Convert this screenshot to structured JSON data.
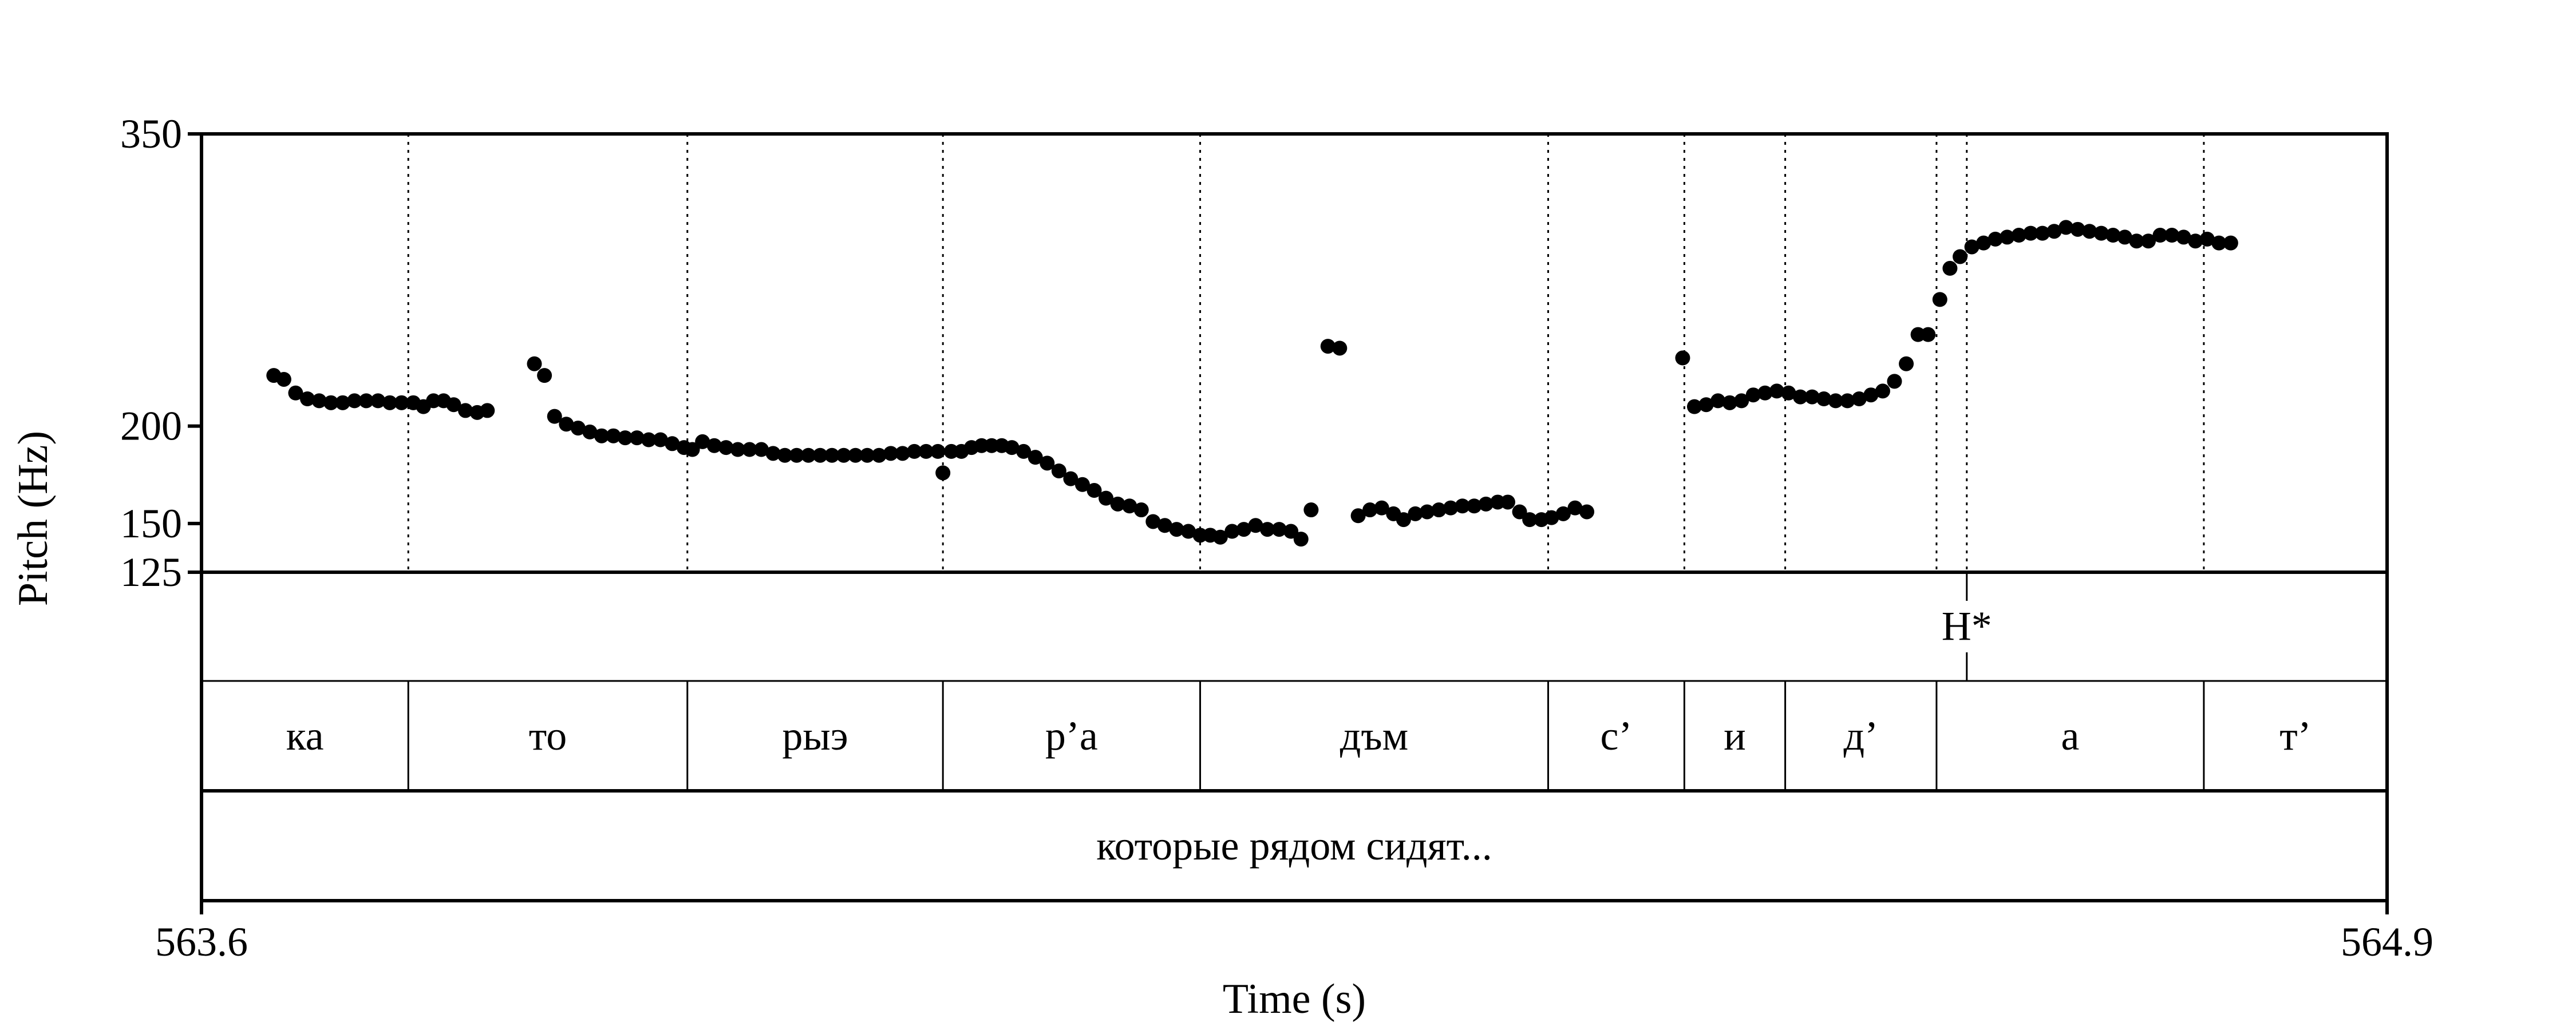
{
  "chart_data": {
    "type": "scatter",
    "title": "",
    "xlabel": "Time (s)",
    "ylabel": "Pitch (Hz)",
    "xlim": [
      563.6,
      564.9
    ],
    "ylim": [
      125,
      350
    ],
    "x_tick_labels": [
      "563.6",
      "564.9"
    ],
    "y_ticks": [
      {
        "value": 350,
        "label": "350"
      },
      {
        "value": 200,
        "label": "200"
      },
      {
        "value": 150,
        "label": "150"
      },
      {
        "value": 125,
        "label": "125"
      }
    ],
    "grid": false,
    "tone_tier": [
      {
        "time": 564.65,
        "label": "H*"
      }
    ],
    "syllable_tier": {
      "boundaries": [
        563.6,
        563.723,
        563.889,
        564.041,
        564.194,
        564.401,
        564.482,
        564.542,
        564.632,
        564.791,
        564.9
      ],
      "labels": [
        "ка",
        "то",
        "рыэ",
        "р’а",
        "дъм",
        "с’",
        "и",
        "д’",
        "а",
        "т’"
      ]
    },
    "word_tier": {
      "boundaries": [
        563.6,
        564.9
      ],
      "labels": [
        "которые рядом сидят..."
      ]
    },
    "series": [
      {
        "points": [
          [
            563.643,
            226
          ],
          [
            563.649,
            224
          ],
          [
            563.656,
            217
          ],
          [
            563.663,
            214
          ],
          [
            563.67,
            213
          ],
          [
            563.677,
            212
          ],
          [
            563.684,
            212
          ],
          [
            563.691,
            213
          ],
          [
            563.698,
            213
          ],
          [
            563.705,
            213
          ],
          [
            563.712,
            212
          ],
          [
            563.719,
            212
          ],
          [
            563.726,
            212
          ],
          [
            563.732,
            210
          ],
          [
            563.738,
            213
          ],
          [
            563.744,
            213
          ],
          [
            563.75,
            211
          ],
          [
            563.757,
            208
          ],
          [
            563.764,
            207
          ],
          [
            563.77,
            208
          ],
          [
            563.798,
            232
          ],
          [
            563.804,
            226
          ],
          [
            563.81,
            205
          ],
          [
            563.817,
            201
          ],
          [
            563.824,
            199
          ],
          [
            563.831,
            197
          ],
          [
            563.838,
            195
          ],
          [
            563.845,
            195
          ],
          [
            563.852,
            194
          ],
          [
            563.859,
            194
          ],
          [
            563.866,
            193
          ],
          [
            563.873,
            193
          ],
          [
            563.88,
            191
          ],
          [
            563.887,
            189
          ],
          [
            563.892,
            188
          ],
          [
            563.898,
            192
          ],
          [
            563.905,
            190
          ],
          [
            563.912,
            189
          ],
          [
            563.919,
            188
          ],
          [
            563.926,
            188
          ],
          [
            563.933,
            188
          ],
          [
            563.94,
            186
          ],
          [
            563.947,
            185
          ],
          [
            563.954,
            185
          ],
          [
            563.961,
            185
          ],
          [
            563.968,
            185
          ],
          [
            563.975,
            185
          ],
          [
            563.982,
            185
          ],
          [
            563.989,
            185
          ],
          [
            563.996,
            185
          ],
          [
            564.003,
            185
          ],
          [
            564.01,
            186
          ],
          [
            564.017,
            186
          ],
          [
            564.024,
            187
          ],
          [
            564.031,
            187
          ],
          [
            564.038,
            187
          ],
          [
            564.041,
            176
          ],
          [
            564.046,
            187
          ],
          [
            564.052,
            187
          ],
          [
            564.058,
            189
          ],
          [
            564.064,
            190
          ],
          [
            564.07,
            190
          ],
          [
            564.076,
            190
          ],
          [
            564.082,
            189
          ],
          [
            564.089,
            187
          ],
          [
            564.096,
            184
          ],
          [
            564.103,
            181
          ],
          [
            564.11,
            177
          ],
          [
            564.117,
            173
          ],
          [
            564.124,
            170
          ],
          [
            564.131,
            167
          ],
          [
            564.138,
            163
          ],
          [
            564.145,
            160
          ],
          [
            564.152,
            159
          ],
          [
            564.159,
            157
          ],
          [
            564.166,
            151
          ],
          [
            564.173,
            149
          ],
          [
            564.18,
            147
          ],
          [
            564.187,
            146
          ],
          [
            564.194,
            144
          ],
          [
            564.2,
            144
          ],
          [
            564.206,
            143
          ],
          [
            564.213,
            146
          ],
          [
            564.22,
            147
          ],
          [
            564.227,
            149
          ],
          [
            564.234,
            147
          ],
          [
            564.241,
            147
          ],
          [
            564.248,
            146
          ],
          [
            564.254,
            142
          ],
          [
            564.26,
            157
          ],
          [
            564.27,
            241
          ],
          [
            564.277,
            240
          ],
          [
            564.288,
            154
          ],
          [
            564.295,
            157
          ],
          [
            564.302,
            158
          ],
          [
            564.309,
            155
          ],
          [
            564.315,
            152
          ],
          [
            564.322,
            155
          ],
          [
            564.329,
            156
          ],
          [
            564.336,
            157
          ],
          [
            564.343,
            158
          ],
          [
            564.35,
            159
          ],
          [
            564.357,
            159
          ],
          [
            564.364,
            160
          ],
          [
            564.371,
            161
          ],
          [
            564.377,
            161
          ],
          [
            564.384,
            156
          ],
          [
            564.39,
            152
          ],
          [
            564.397,
            152
          ],
          [
            564.403,
            153
          ],
          [
            564.41,
            155
          ],
          [
            564.417,
            158
          ],
          [
            564.424,
            156
          ],
          [
            564.481,
            235
          ],
          [
            564.488,
            210
          ],
          [
            564.495,
            211
          ],
          [
            564.502,
            213
          ],
          [
            564.509,
            212
          ],
          [
            564.516,
            213
          ],
          [
            564.523,
            216
          ],
          [
            564.53,
            217
          ],
          [
            564.537,
            218
          ],
          [
            564.544,
            217
          ],
          [
            564.551,
            215
          ],
          [
            564.558,
            215
          ],
          [
            564.565,
            214
          ],
          [
            564.572,
            213
          ],
          [
            564.579,
            213
          ],
          [
            564.586,
            214
          ],
          [
            564.593,
            216
          ],
          [
            564.6,
            218
          ],
          [
            564.607,
            223
          ],
          [
            564.614,
            232
          ],
          [
            564.621,
            247
          ],
          [
            564.627,
            247
          ],
          [
            564.634,
            265
          ],
          [
            564.64,
            281
          ],
          [
            564.646,
            287
          ],
          [
            564.653,
            292
          ],
          [
            564.66,
            294
          ],
          [
            564.667,
            296
          ],
          [
            564.674,
            297
          ],
          [
            564.681,
            298
          ],
          [
            564.688,
            299
          ],
          [
            564.695,
            299
          ],
          [
            564.702,
            300
          ],
          [
            564.709,
            302
          ],
          [
            564.716,
            301
          ],
          [
            564.723,
            300
          ],
          [
            564.73,
            299
          ],
          [
            564.737,
            298
          ],
          [
            564.744,
            297
          ],
          [
            564.751,
            295
          ],
          [
            564.758,
            295
          ],
          [
            564.765,
            298
          ],
          [
            564.772,
            298
          ],
          [
            564.779,
            297
          ],
          [
            564.786,
            295
          ],
          [
            564.793,
            296
          ],
          [
            564.8,
            294
          ],
          [
            564.807,
            294
          ]
        ]
      }
    ]
  }
}
